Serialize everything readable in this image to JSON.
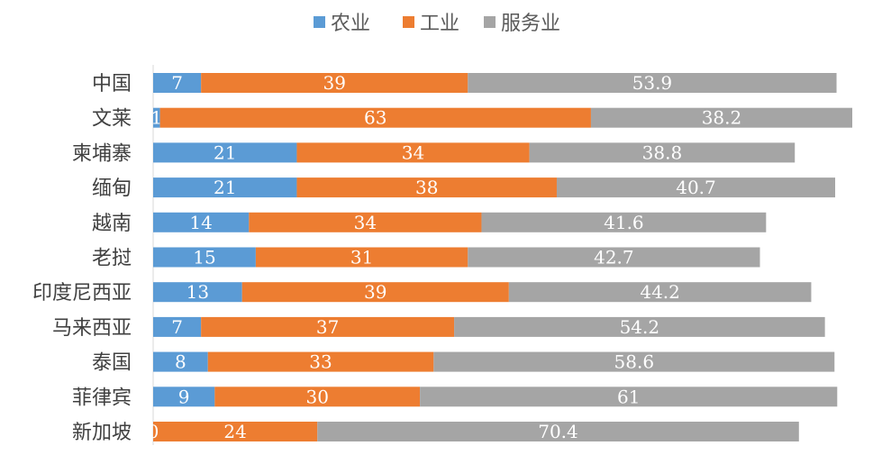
{
  "chart_data": {
    "type": "bar",
    "orientation": "horizontal",
    "stacked": true,
    "categories": [
      "中国",
      "文莱",
      "柬埔寨",
      "缅甸",
      "越南",
      "老挝",
      "印度尼西亚",
      "马来西亚",
      "泰国",
      "菲律宾",
      "新加坡"
    ],
    "series": [
      {
        "name": "农业",
        "color": "#5b9bd5",
        "values": [
          7,
          1,
          21,
          21,
          14,
          15,
          13,
          7,
          8,
          9,
          0
        ]
      },
      {
        "name": "工业",
        "color": "#ed7d31",
        "values": [
          39,
          63,
          34,
          38,
          34,
          31,
          39,
          37,
          33,
          30,
          24
        ]
      },
      {
        "name": "服务业",
        "color": "#a5a5a5",
        "values": [
          53.9,
          38.2,
          38.8,
          40.7,
          41.6,
          42.7,
          44.2,
          54.2,
          58.6,
          61,
          70.4
        ]
      }
    ],
    "title": "",
    "xlabel": "",
    "ylabel": "",
    "legend_position": "top",
    "grid": false
  }
}
